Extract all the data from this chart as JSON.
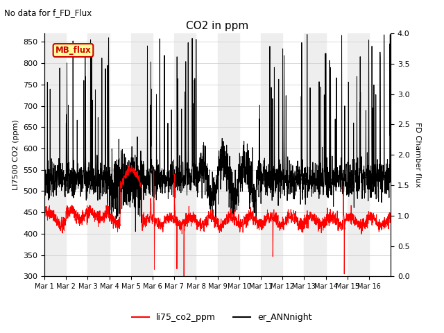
{
  "title": "CO2 in ppm",
  "suptitle": "No data for f_FD_Flux",
  "ylabel_left": "LI7500 CO2 (ppm)",
  "ylabel_right": "FD Chamber flux",
  "ylim_left": [
    300,
    870
  ],
  "ylim_right": [
    0.0,
    4.0
  ],
  "yticks_left": [
    300,
    350,
    400,
    450,
    500,
    550,
    600,
    650,
    700,
    750,
    800,
    850
  ],
  "yticks_right": [
    0.0,
    0.5,
    1.0,
    1.5,
    2.0,
    2.5,
    3.0,
    3.5,
    4.0
  ],
  "xticklabels": [
    "Mar 1",
    "Mar 2",
    "Mar 3",
    "Mar 4",
    "Mar 5",
    "Mar 6",
    "Mar 7",
    "Mar 8",
    "Mar 9",
    "Mar 10",
    "Mar 11",
    "Mar 12",
    "Mar 13",
    "Mar 14",
    "Mar 15",
    "Mar 16"
  ],
  "n_days": 16,
  "pts_per_day": 144,
  "co2_color": "#ff0000",
  "ann_color": "#000000",
  "mb_flux_box_color": "#ffff99",
  "mb_flux_text_color": "#cc0000",
  "legend_entries": [
    "li75_co2_ppm",
    "er_ANNnight"
  ],
  "legend_colors": [
    "#ff0000",
    "#000000"
  ],
  "background_stripe_color": "#eeeeee",
  "grid_color": "#cccccc"
}
